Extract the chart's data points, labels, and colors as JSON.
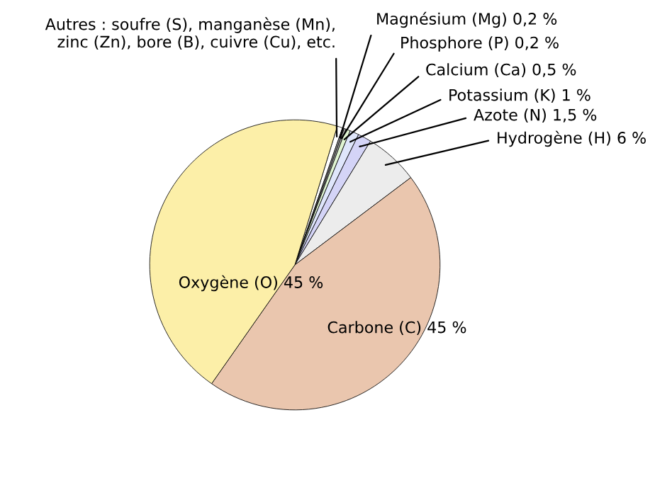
{
  "chart_data": {
    "type": "pie",
    "categories": [
      "Autres : soufre (S), manganèse (Mn),\nzinc (Zn), bore (B), cuivre (Cu), etc.",
      "Magnésium (Mg) 0,2 %",
      "Phosphore (P) 0,2 %",
      "Calcium (Ca) 0,5 %",
      "Potassium (K) 1 %",
      "Azote (N) 1,5 %",
      "Hydrogène (H) 6 %",
      "Carbone (C) 45 %",
      "Oxygène (O) 45 %"
    ],
    "values": [
      0.6,
      0.2,
      0.2,
      0.5,
      1,
      1.5,
      6,
      45,
      45
    ],
    "colors": [
      "#ffffff",
      "#9a9a9a",
      "#b4b4b4",
      "#e0f5d2",
      "#dfe6fb",
      "#d4d4f7",
      "#ececec",
      "#eac6ae",
      "#fcefa8"
    ]
  }
}
